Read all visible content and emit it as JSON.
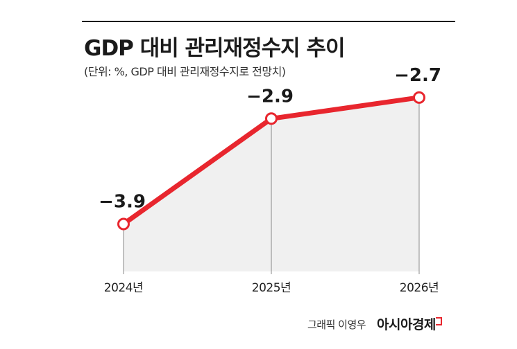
{
  "title": "GDP 대비 관리재정수지 추이",
  "subtitle": "(단위: %, GDP 대비 관리재정수지로 전망치)",
  "credit": "그래픽 이영우",
  "brand": "아시아경제",
  "colors": {
    "line": "#e8262e",
    "area": "#f0f0f0",
    "text": "#1a1a1a"
  },
  "chart_data": {
    "type": "line",
    "categories": [
      "2024년",
      "2025년",
      "2026년"
    ],
    "series": [
      {
        "values": [
          -3.9,
          -2.9,
          -2.7
        ],
        "labels": [
          "−3.9",
          "−2.9",
          "−2.7"
        ]
      }
    ],
    "ylim": [
      -4.35,
      -2.55
    ],
    "grid": false,
    "legend": "none",
    "title": "GDP 대비 관리재정수지 추이",
    "xlabel": "",
    "ylabel": ""
  }
}
